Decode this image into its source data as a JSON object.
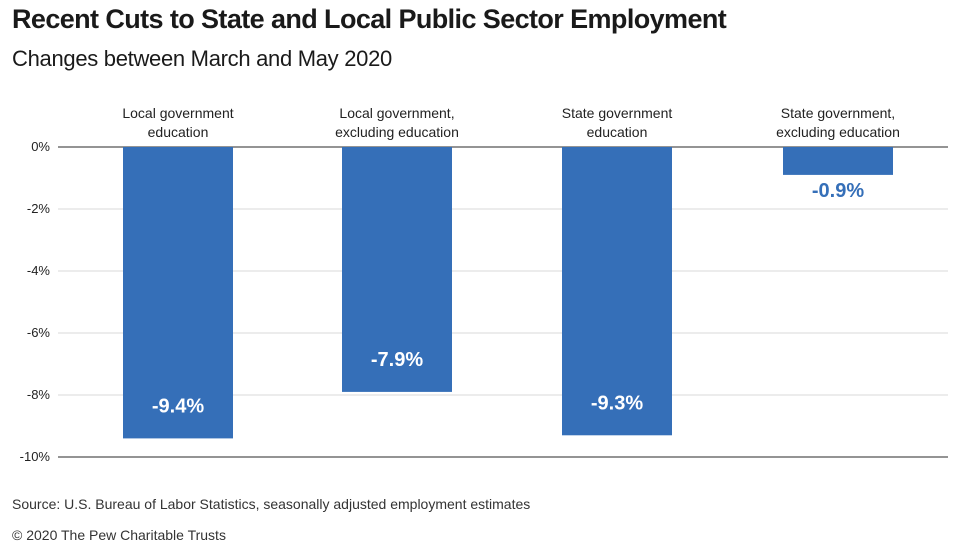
{
  "title": "Recent Cuts to State and Local Public Sector Employment",
  "subtitle": "Changes between March and May 2020",
  "source": "Source: U.S. Bureau of Labor Statistics, seasonally adjusted employment estimates",
  "copyright": "© 2020 The Pew Charitable Trusts",
  "colors": {
    "bar": "#356fb8",
    "label_inside": "#ffffff",
    "label_outside": "#356fb8",
    "grid": "#d9d9d9",
    "axis": "#555555"
  },
  "chart_data": {
    "type": "bar",
    "categories": [
      [
        "Local government",
        "education"
      ],
      [
        "Local government,",
        "excluding education"
      ],
      [
        "State government",
        "education"
      ],
      [
        "State government,",
        "excluding education"
      ]
    ],
    "values": [
      -9.4,
      -7.9,
      -9.3,
      -0.9
    ],
    "value_labels": [
      "-9.4%",
      "-7.9%",
      "-9.3%",
      "-0.9%"
    ],
    "yticks": [
      "0%",
      "-2%",
      "-4%",
      "-6%",
      "-8%",
      "-10%"
    ],
    "ytick_values": [
      0,
      -2,
      -4,
      -6,
      -8,
      -10
    ],
    "ylim": [
      -10,
      0
    ],
    "grid": true,
    "category_label_position": "top"
  }
}
